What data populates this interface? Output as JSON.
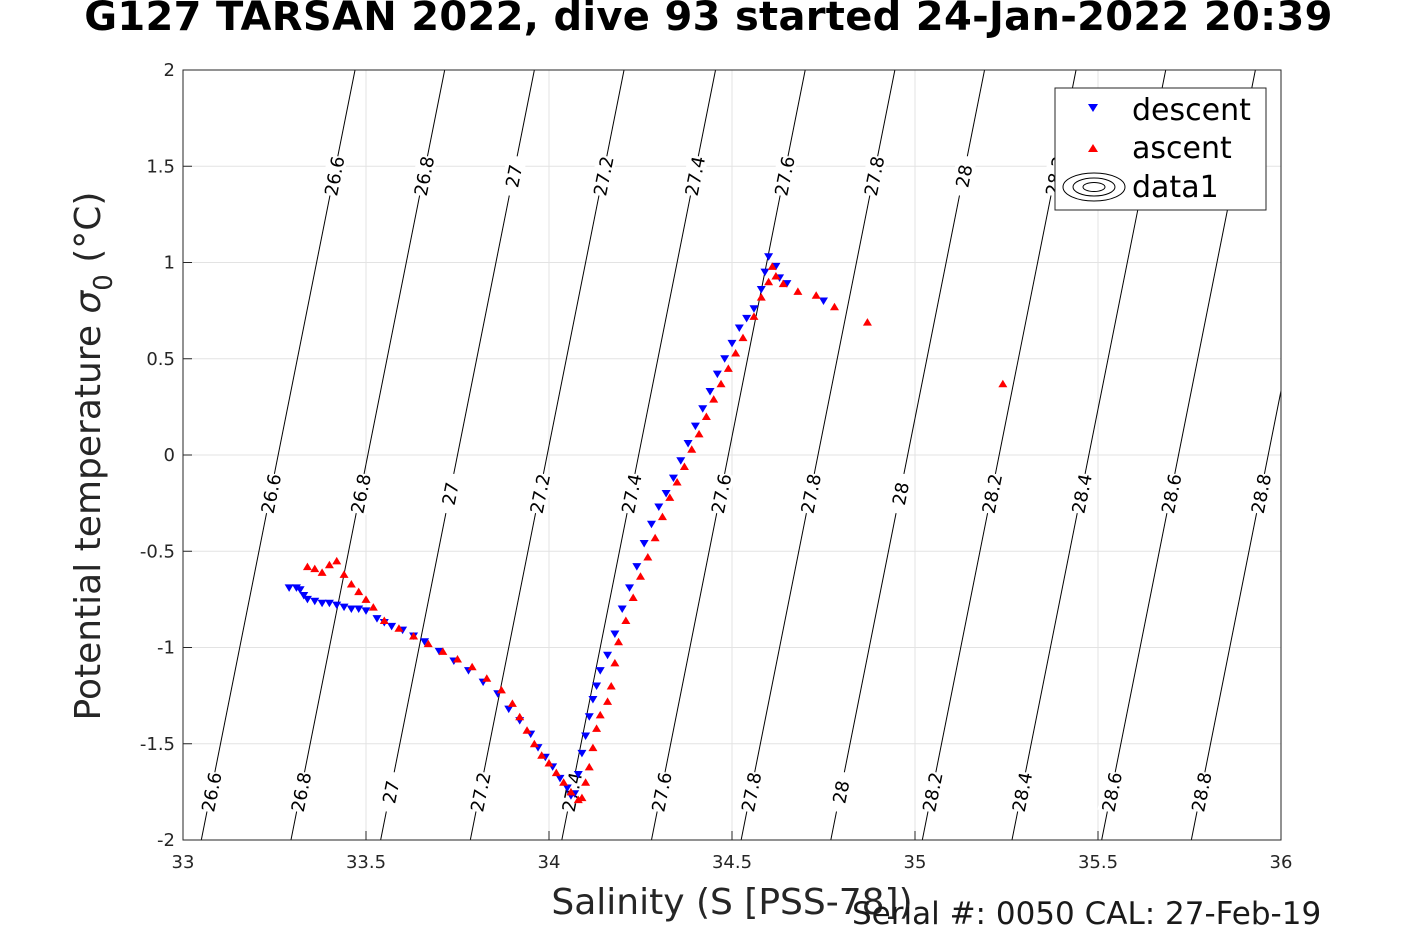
{
  "chart_data": {
    "type": "scatter",
    "title": "G127 TARSAN 2022, dive 93 started 24-Jan-2022 20:39",
    "xlabel": "Salinity (S [PSS-78])",
    "ylabel_main": "Potential temperature ",
    "ylabel_sigma": "σ",
    "ylabel_sub": "0",
    "ylabel_unit": " (°C)",
    "xlim": [
      33,
      36
    ],
    "ylim": [
      -2,
      2
    ],
    "xticks": [
      33,
      33.5,
      34,
      34.5,
      35,
      35.5,
      36
    ],
    "xtick_labels": [
      "33",
      "33.5",
      "34",
      "34.5",
      "35",
      "35.5",
      "36"
    ],
    "yticks": [
      -2,
      -1.5,
      -1,
      -0.5,
      0,
      0.5,
      1,
      1.5,
      2
    ],
    "ytick_labels": [
      "-2",
      "-1.5",
      "-1",
      "-0.5",
      "0",
      "0.5",
      "1",
      "1.5",
      "2"
    ],
    "grid": true,
    "legend_position": "top-right",
    "contour_levels": [
      26.6,
      26.8,
      27.0,
      27.2,
      27.4,
      27.6,
      27.8,
      28.0,
      28.2,
      28.4,
      28.6,
      28.8
    ],
    "contour_label_text": [
      "26.6",
      "26.8",
      "27",
      "27.2",
      "27.4",
      "27.6",
      "27.8",
      "28",
      "28.2",
      "28.4",
      "28.6",
      "28.8"
    ],
    "contour_salinity_at_bottom": [
      33.05,
      33.295,
      33.54,
      33.785,
      34.035,
      34.28,
      34.525,
      34.77,
      35.02,
      35.265,
      35.51,
      35.755
    ],
    "contour_salinity_slope_per_degC": 0.105,
    "series": [
      {
        "name": "descent",
        "color": "#0000ff",
        "marker": "triangle-down",
        "points": [
          [
            33.29,
            -0.69
          ],
          [
            33.31,
            -0.69
          ],
          [
            33.32,
            -0.7
          ],
          [
            33.33,
            -0.73
          ],
          [
            33.34,
            -0.75
          ],
          [
            33.36,
            -0.76
          ],
          [
            33.38,
            -0.77
          ],
          [
            33.4,
            -0.77
          ],
          [
            33.42,
            -0.78
          ],
          [
            33.44,
            -0.79
          ],
          [
            33.46,
            -0.8
          ],
          [
            33.48,
            -0.8
          ],
          [
            33.5,
            -0.81
          ],
          [
            33.53,
            -0.85
          ],
          [
            33.55,
            -0.87
          ],
          [
            33.57,
            -0.89
          ],
          [
            33.6,
            -0.91
          ],
          [
            33.63,
            -0.94
          ],
          [
            33.66,
            -0.97
          ],
          [
            33.7,
            -1.02
          ],
          [
            33.74,
            -1.07
          ],
          [
            33.78,
            -1.12
          ],
          [
            33.82,
            -1.18
          ],
          [
            33.86,
            -1.24
          ],
          [
            33.89,
            -1.32
          ],
          [
            33.92,
            -1.38
          ],
          [
            33.95,
            -1.45
          ],
          [
            33.97,
            -1.52
          ],
          [
            33.99,
            -1.57
          ],
          [
            34.01,
            -1.62
          ],
          [
            34.03,
            -1.68
          ],
          [
            34.05,
            -1.73
          ],
          [
            34.06,
            -1.77
          ],
          [
            34.07,
            -1.76
          ],
          [
            34.08,
            -1.66
          ],
          [
            34.09,
            -1.55
          ],
          [
            34.1,
            -1.46
          ],
          [
            34.11,
            -1.36
          ],
          [
            34.12,
            -1.27
          ],
          [
            34.13,
            -1.2
          ],
          [
            34.14,
            -1.12
          ],
          [
            34.16,
            -1.04
          ],
          [
            34.18,
            -0.93
          ],
          [
            34.2,
            -0.8
          ],
          [
            34.22,
            -0.69
          ],
          [
            34.24,
            -0.58
          ],
          [
            34.26,
            -0.46
          ],
          [
            34.28,
            -0.36
          ],
          [
            34.3,
            -0.27
          ],
          [
            34.32,
            -0.2
          ],
          [
            34.34,
            -0.12
          ],
          [
            34.36,
            -0.03
          ],
          [
            34.38,
            0.06
          ],
          [
            34.4,
            0.15
          ],
          [
            34.42,
            0.24
          ],
          [
            34.44,
            0.33
          ],
          [
            34.46,
            0.42
          ],
          [
            34.48,
            0.5
          ],
          [
            34.5,
            0.58
          ],
          [
            34.52,
            0.66
          ],
          [
            34.54,
            0.71
          ],
          [
            34.56,
            0.76
          ],
          [
            34.58,
            0.86
          ],
          [
            34.59,
            0.95
          ],
          [
            34.6,
            1.03
          ],
          [
            34.62,
            0.98
          ],
          [
            34.63,
            0.92
          ],
          [
            34.65,
            0.89
          ],
          [
            34.75,
            0.8
          ]
        ]
      },
      {
        "name": "ascent",
        "color": "#ff0000",
        "marker": "triangle-up",
        "points": [
          [
            33.34,
            -0.58
          ],
          [
            33.36,
            -0.59
          ],
          [
            33.38,
            -0.61
          ],
          [
            33.4,
            -0.57
          ],
          [
            33.42,
            -0.55
          ],
          [
            33.44,
            -0.62
          ],
          [
            33.46,
            -0.67
          ],
          [
            33.48,
            -0.71
          ],
          [
            33.5,
            -0.75
          ],
          [
            33.52,
            -0.79
          ],
          [
            33.55,
            -0.86
          ],
          [
            33.59,
            -0.9
          ],
          [
            33.63,
            -0.94
          ],
          [
            33.67,
            -0.98
          ],
          [
            33.71,
            -1.02
          ],
          [
            33.75,
            -1.06
          ],
          [
            33.79,
            -1.1
          ],
          [
            33.83,
            -1.16
          ],
          [
            33.87,
            -1.22
          ],
          [
            33.9,
            -1.29
          ],
          [
            33.92,
            -1.36
          ],
          [
            33.94,
            -1.43
          ],
          [
            33.96,
            -1.5
          ],
          [
            33.98,
            -1.56
          ],
          [
            34.0,
            -1.6
          ],
          [
            34.02,
            -1.65
          ],
          [
            34.04,
            -1.7
          ],
          [
            34.06,
            -1.75
          ],
          [
            34.08,
            -1.79
          ],
          [
            34.09,
            -1.78
          ],
          [
            34.1,
            -1.7
          ],
          [
            34.11,
            -1.62
          ],
          [
            34.12,
            -1.52
          ],
          [
            34.13,
            -1.42
          ],
          [
            34.14,
            -1.35
          ],
          [
            34.16,
            -1.28
          ],
          [
            34.17,
            -1.2
          ],
          [
            34.18,
            -1.08
          ],
          [
            34.19,
            -0.97
          ],
          [
            34.21,
            -0.86
          ],
          [
            34.23,
            -0.74
          ],
          [
            34.25,
            -0.63
          ],
          [
            34.27,
            -0.53
          ],
          [
            34.29,
            -0.43
          ],
          [
            34.31,
            -0.32
          ],
          [
            34.33,
            -0.22
          ],
          [
            34.35,
            -0.14
          ],
          [
            34.37,
            -0.06
          ],
          [
            34.39,
            0.03
          ],
          [
            34.41,
            0.11
          ],
          [
            34.43,
            0.2
          ],
          [
            34.45,
            0.29
          ],
          [
            34.47,
            0.37
          ],
          [
            34.49,
            0.45
          ],
          [
            34.51,
            0.53
          ],
          [
            34.53,
            0.61
          ],
          [
            34.56,
            0.72
          ],
          [
            34.58,
            0.82
          ],
          [
            34.6,
            0.9
          ],
          [
            34.61,
            0.98
          ],
          [
            34.62,
            0.93
          ],
          [
            34.64,
            0.89
          ],
          [
            34.68,
            0.85
          ],
          [
            34.73,
            0.83
          ],
          [
            34.78,
            0.77
          ],
          [
            34.87,
            0.69
          ],
          [
            35.24,
            0.37
          ]
        ]
      }
    ],
    "legend": [
      {
        "label": "descent",
        "symbol": "triangle-down",
        "color": "#0000ff"
      },
      {
        "label": "ascent",
        "symbol": "triangle-up",
        "color": "#ff0000"
      },
      {
        "label": "data1",
        "symbol": "contour",
        "color": "#000000"
      }
    ],
    "footer": "Serial #: 0050  CAL: 27-Feb-19"
  }
}
